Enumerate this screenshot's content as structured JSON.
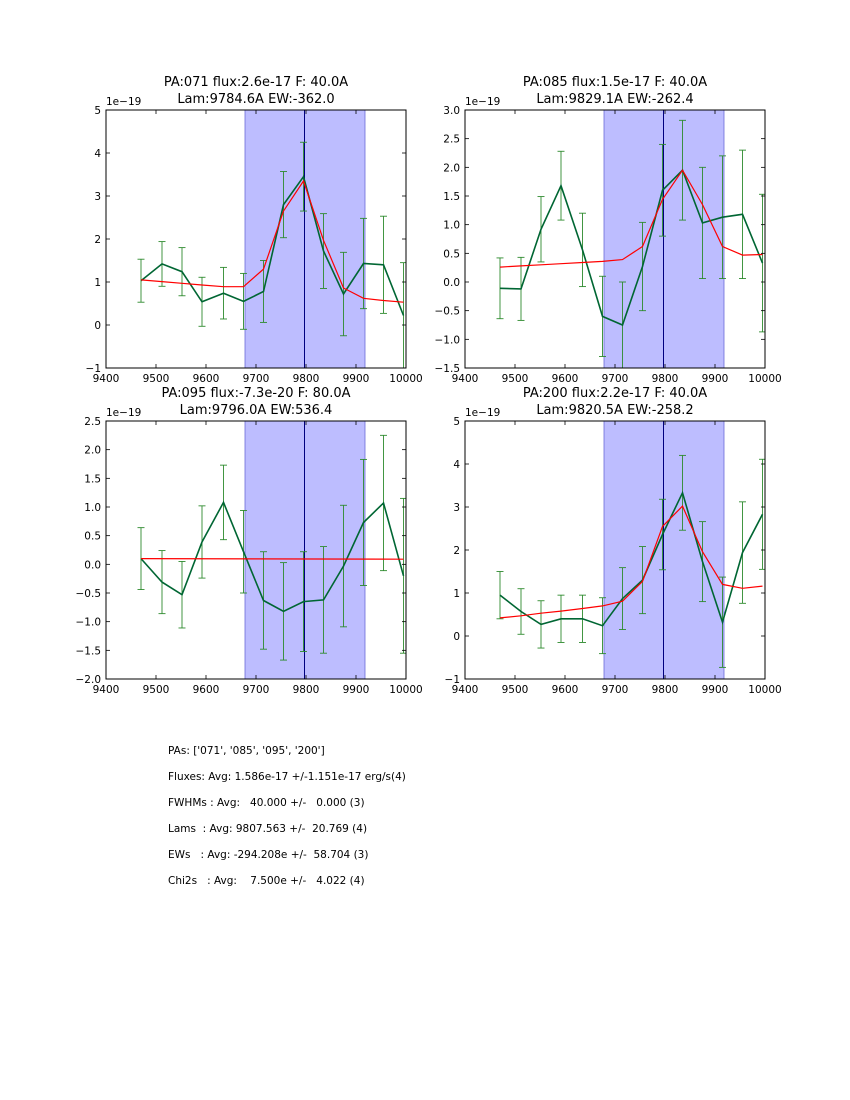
{
  "chart_data": [
    {
      "type": "line",
      "title_line1": "PA:071 flux:2.6e-17 F: 40.0A",
      "title_line2": "Lam:9784.6A EW:-362.0",
      "xlim": [
        9400,
        10000
      ],
      "ylim": [
        -1,
        5
      ],
      "xticks": [
        "9400",
        "9500",
        "9600",
        "9700",
        "9800",
        "9900",
        "10000"
      ],
      "xtick_values": [
        9400,
        9500,
        9600,
        9700,
        9800,
        9900,
        10000
      ],
      "yticks": [
        "−1",
        "0",
        "1",
        "2",
        "3",
        "4",
        "5"
      ],
      "ytick_values": [
        -1,
        0,
        1,
        2,
        3,
        4,
        5
      ],
      "offset_label": "1e−19",
      "shaded_region": [
        9678,
        9918
      ],
      "vline": 9797,
      "series": [
        {
          "name": "data",
          "color": "#006633",
          "x": [
            9470,
            9512,
            9552,
            9592,
            9635,
            9675,
            9715,
            9755,
            9795,
            9835,
            9875,
            9915,
            9955,
            9995
          ],
          "values": [
            1.03,
            1.42,
            1.24,
            0.54,
            0.74,
            0.55,
            0.78,
            2.8,
            3.45,
            1.72,
            0.72,
            1.43,
            1.4,
            0.22
          ],
          "err": [
            0.5,
            0.52,
            0.56,
            0.57,
            0.6,
            0.65,
            0.72,
            0.77,
            0.8,
            0.87,
            0.97,
            1.05,
            1.13,
            1.23
          ]
        },
        {
          "name": "model",
          "color": "#ff0000",
          "x": [
            9470,
            9512,
            9552,
            9592,
            9635,
            9675,
            9715,
            9755,
            9795,
            9835,
            9875,
            9915,
            9955,
            9995
          ],
          "values": [
            1.05,
            1.01,
            0.97,
            0.93,
            0.89,
            0.89,
            1.3,
            2.65,
            3.35,
            1.97,
            0.86,
            0.62,
            0.57,
            0.53
          ]
        }
      ]
    },
    {
      "type": "line",
      "title_line1": "PA:085 flux:1.5e-17 F: 40.0A",
      "title_line2": "Lam:9829.1A EW:-262.4",
      "xlim": [
        9400,
        10000
      ],
      "ylim": [
        -1.5,
        3.0
      ],
      "xticks": [
        "9400",
        "9500",
        "9600",
        "9700",
        "9800",
        "9900",
        "10000"
      ],
      "xtick_values": [
        9400,
        9500,
        9600,
        9700,
        9800,
        9900,
        10000
      ],
      "yticks": [
        "−1.5",
        "−1.0",
        "−0.5",
        "0.0",
        "0.5",
        "1.0",
        "1.5",
        "2.0",
        "2.5",
        "3.0"
      ],
      "ytick_values": [
        -1.5,
        -1.0,
        -0.5,
        0.0,
        0.5,
        1.0,
        1.5,
        2.0,
        2.5,
        3.0
      ],
      "offset_label": "1e−19",
      "shaded_region": [
        9678,
        9918
      ],
      "vline": 9797,
      "series": [
        {
          "name": "data",
          "color": "#006633",
          "x": [
            9470,
            9512,
            9552,
            9592,
            9635,
            9675,
            9715,
            9755,
            9795,
            9835,
            9875,
            9915,
            9955,
            9995
          ],
          "values": [
            -0.11,
            -0.12,
            0.92,
            1.68,
            0.56,
            -0.6,
            -0.75,
            0.27,
            1.6,
            1.95,
            1.03,
            1.13,
            1.18,
            0.33
          ],
          "err": [
            0.53,
            0.55,
            0.57,
            0.6,
            0.64,
            0.7,
            0.75,
            0.77,
            0.8,
            0.87,
            0.97,
            1.07,
            1.12,
            1.2
          ]
        },
        {
          "name": "model",
          "color": "#ff0000",
          "x": [
            9470,
            9512,
            9552,
            9592,
            9635,
            9675,
            9715,
            9755,
            9795,
            9835,
            9875,
            9915,
            9955,
            9995
          ],
          "values": [
            0.26,
            0.28,
            0.3,
            0.32,
            0.34,
            0.36,
            0.39,
            0.62,
            1.44,
            1.95,
            1.35,
            0.62,
            0.47,
            0.48
          ]
        }
      ]
    },
    {
      "type": "line",
      "title_line1": "PA:095 flux:-7.3e-20 F: 80.0A",
      "title_line2": "Lam:9796.0A EW:536.4",
      "xlim": [
        9400,
        10000
      ],
      "ylim": [
        -2.0,
        2.5
      ],
      "xticks": [
        "9400",
        "9500",
        "9600",
        "9700",
        "9800",
        "9900",
        "10000"
      ],
      "xtick_values": [
        9400,
        9500,
        9600,
        9700,
        9800,
        9900,
        10000
      ],
      "yticks": [
        "−2.0",
        "−1.5",
        "−1.0",
        "−0.5",
        "0.0",
        "0.5",
        "1.0",
        "1.5",
        "2.0",
        "2.5"
      ],
      "ytick_values": [
        -2.0,
        -1.5,
        -1.0,
        -0.5,
        0.0,
        0.5,
        1.0,
        1.5,
        2.0,
        2.5
      ],
      "offset_label": "1e−19",
      "shaded_region": [
        9678,
        9918
      ],
      "vline": 9797,
      "series": [
        {
          "name": "data",
          "color": "#006633",
          "x": [
            9470,
            9512,
            9552,
            9592,
            9635,
            9675,
            9715,
            9755,
            9795,
            9835,
            9875,
            9915,
            9955,
            9995
          ],
          "values": [
            0.1,
            -0.31,
            -0.53,
            0.39,
            1.08,
            0.22,
            -0.63,
            -0.82,
            -0.65,
            -0.62,
            -0.03,
            0.73,
            1.07,
            -0.2
          ],
          "err": [
            0.54,
            0.55,
            0.58,
            0.63,
            0.65,
            0.72,
            0.85,
            0.85,
            0.87,
            0.93,
            1.06,
            1.1,
            1.18,
            1.35
          ]
        },
        {
          "name": "model",
          "color": "#ff0000",
          "x": [
            9470,
            9995
          ],
          "values": [
            0.1,
            0.09
          ]
        }
      ]
    },
    {
      "type": "line",
      "title_line1": "PA:200 flux:2.2e-17 F: 40.0A",
      "title_line2": "Lam:9820.5A EW:-258.2",
      "xlim": [
        9400,
        10000
      ],
      "ylim": [
        -1,
        5
      ],
      "xticks": [
        "9400",
        "9500",
        "9600",
        "9700",
        "9800",
        "9900",
        "10000"
      ],
      "xtick_values": [
        9400,
        9500,
        9600,
        9700,
        9800,
        9900,
        10000
      ],
      "yticks": [
        "−1",
        "0",
        "1",
        "2",
        "3",
        "4",
        "5"
      ],
      "ytick_values": [
        -1,
        0,
        1,
        2,
        3,
        4,
        5
      ],
      "offset_label": "1e−19",
      "shaded_region": [
        9678,
        9918
      ],
      "vline": 9797,
      "series": [
        {
          "name": "data",
          "color": "#006633",
          "x": [
            9470,
            9512,
            9552,
            9592,
            9635,
            9675,
            9715,
            9755,
            9795,
            9835,
            9875,
            9915,
            9955,
            9995
          ],
          "values": [
            0.95,
            0.57,
            0.27,
            0.4,
            0.4,
            0.24,
            0.87,
            1.3,
            2.36,
            3.33,
            1.73,
            0.32,
            1.94,
            2.83
          ],
          "err": [
            0.55,
            0.53,
            0.55,
            0.55,
            0.55,
            0.65,
            0.72,
            0.78,
            0.82,
            0.87,
            0.93,
            1.05,
            1.18,
            1.28
          ]
        },
        {
          "name": "model",
          "color": "#ff0000",
          "x": [
            9470,
            9512,
            9552,
            9592,
            9635,
            9675,
            9715,
            9755,
            9795,
            9835,
            9875,
            9915,
            9955,
            9995
          ],
          "values": [
            0.42,
            0.47,
            0.53,
            0.58,
            0.64,
            0.7,
            0.81,
            1.27,
            2.55,
            3.02,
            1.96,
            1.2,
            1.11,
            1.16
          ]
        }
      ]
    }
  ],
  "summary": {
    "pas": "PAs: ['071', '085', '095', '200']",
    "fluxes": "Fluxes: Avg: 1.586e-17 +/-1.151e-17 erg/s(4)",
    "fwhms": "FWHMs : Avg:   40.000 +/-   0.000 (3)",
    "lams": "Lams  : Avg: 9807.563 +/-  20.769 (4)",
    "ews": "EWs   : Avg: -294.208e +/-  58.704 (3)",
    "chi2s": "Chi2s   : Avg:    7.500e +/-   4.022 (4)"
  }
}
